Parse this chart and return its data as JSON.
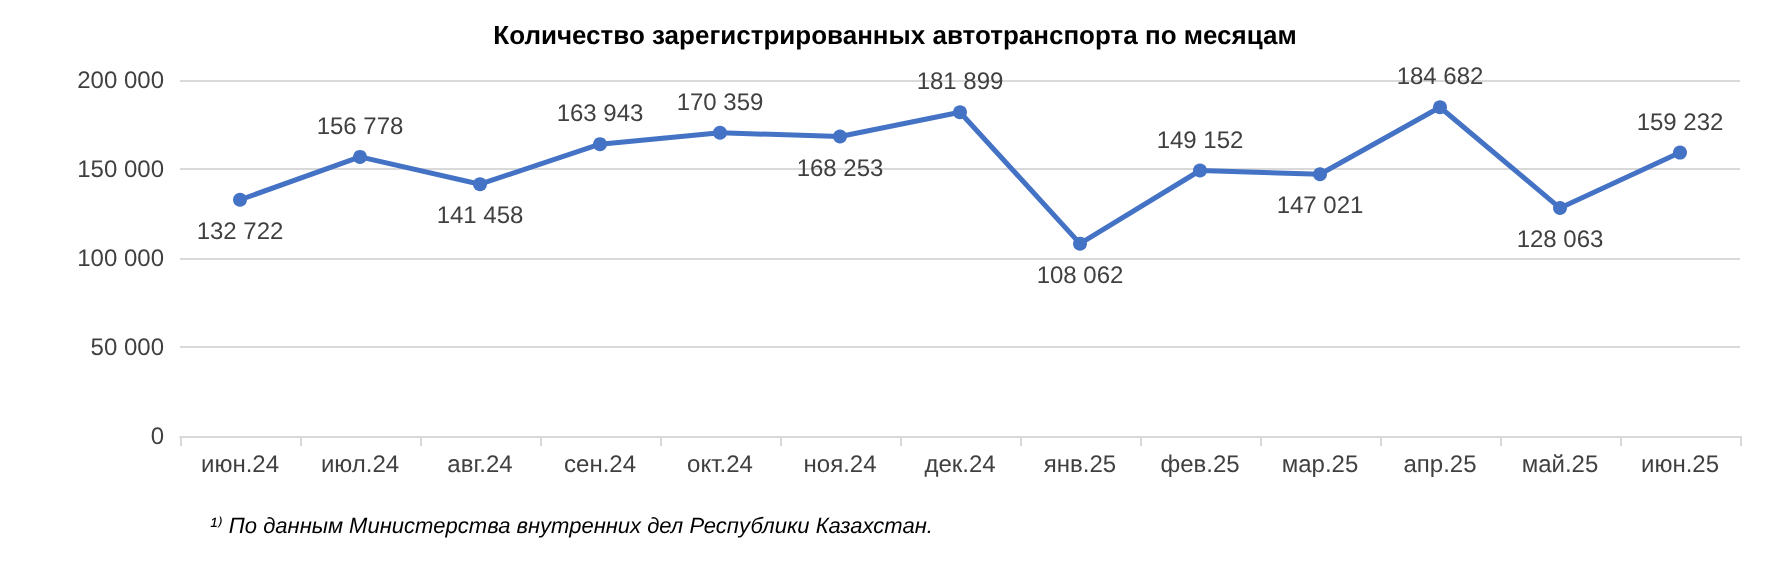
{
  "chart_data": {
    "type": "line",
    "title": "Количество зарегистрированных автотранспорта по месяцам",
    "categories": [
      "июн.24",
      "июл.24",
      "авг.24",
      "сен.24",
      "окт.24",
      "ноя.24",
      "дек.24",
      "янв.25",
      "фев.25",
      "мар.25",
      "апр.25",
      "май.25",
      "июн.25"
    ],
    "values": [
      132722,
      156778,
      141458,
      163943,
      170359,
      168253,
      181899,
      108062,
      149152,
      147021,
      184682,
      128063,
      159232
    ],
    "value_labels": [
      "132 722",
      "156 778",
      "141 458",
      "163 943",
      "170 359",
      "168 253",
      "181 899",
      "108 062",
      "149 152",
      "147 021",
      "184 682",
      "128 063",
      "159 232"
    ],
    "color": "#4472c4",
    "ylim": [
      0,
      200000
    ],
    "yticks": [
      {
        "value": 0,
        "label": "0"
      },
      {
        "value": 50000,
        "label": "50 000"
      },
      {
        "value": 100000,
        "label": "100 000"
      },
      {
        "value": 150000,
        "label": "150 000"
      },
      {
        "value": 200000,
        "label": "200 000"
      }
    ],
    "grid": "y",
    "marker": "circle",
    "line_style": "solid",
    "annotations": [
      "¹⁾ По данным Министерства внутренних дел Республики Казахстан."
    ]
  }
}
